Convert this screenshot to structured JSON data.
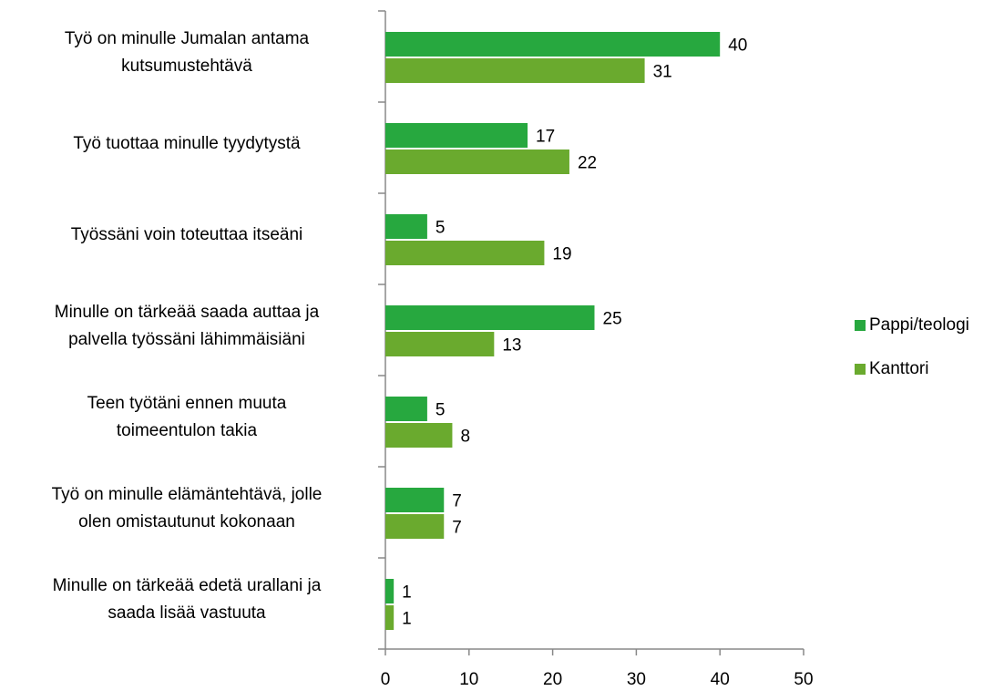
{
  "chart_data": {
    "type": "bar",
    "orientation": "horizontal",
    "categories": [
      [
        "Työ on minulle Jumalan antama",
        "kutsumustehtävä"
      ],
      [
        "Työ tuottaa minulle tyydytystä"
      ],
      [
        "Työssäni voin toteuttaa itseäni"
      ],
      [
        "Minulle on tärkeää saada auttaa ja",
        "palvella työssäni lähimmäisiäni"
      ],
      [
        "Teen työtäni ennen muuta",
        "toimeentulon takia"
      ],
      [
        "Työ on minulle elämäntehtävä, jolle",
        "olen omistautunut kokonaan"
      ],
      [
        "Minulle on tärkeää edetä urallani ja",
        "saada lisää vastuuta"
      ]
    ],
    "series": [
      {
        "name": "Pappi/teologi",
        "color": "#27a83f",
        "values": [
          40,
          17,
          5,
          25,
          5,
          7,
          1
        ]
      },
      {
        "name": "Kanttori",
        "color": "#6aaa2e",
        "values": [
          31,
          22,
          19,
          13,
          8,
          7,
          1
        ]
      }
    ],
    "xlim": [
      0,
      50
    ],
    "xticks": [
      0,
      10,
      20,
      30,
      40,
      50
    ],
    "legend": "right"
  }
}
